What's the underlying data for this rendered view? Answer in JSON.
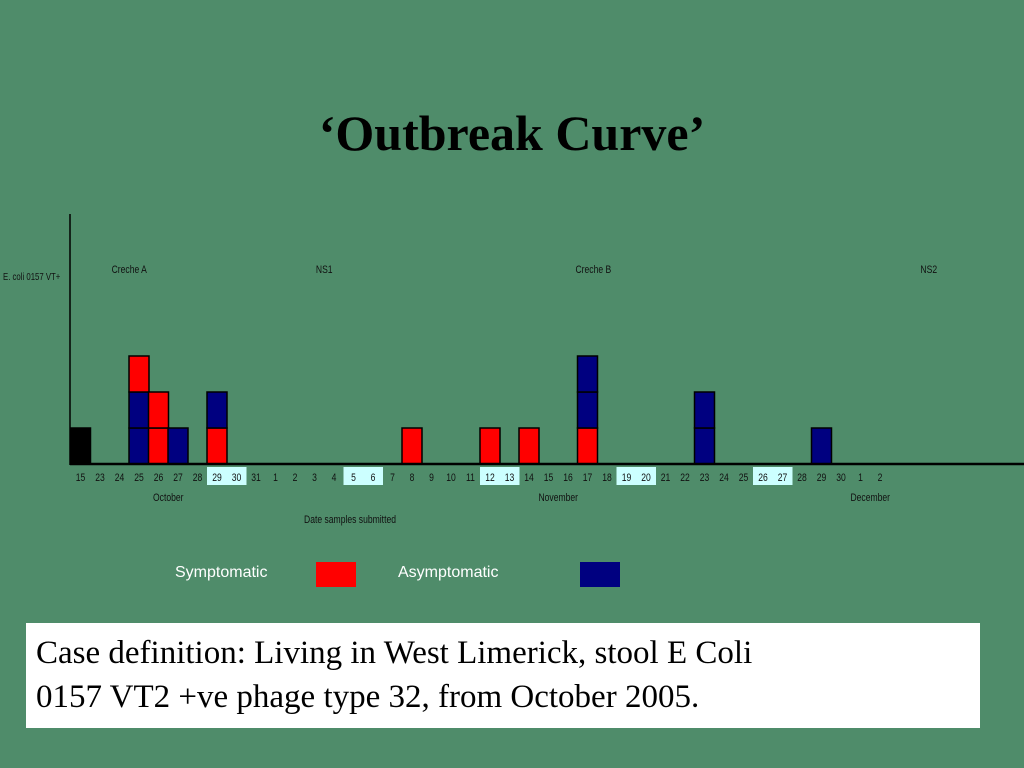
{
  "title": "‘Outbreak Curve’",
  "colors": {
    "background": "#4f8c6a",
    "symptomatic": "#ff0000",
    "asymptomatic": "#000080",
    "index_case": "#000000",
    "highlight_date": "#ccffff"
  },
  "legend": {
    "symptomatic": "Symptomatic",
    "asymptomatic": "Asymptomatic"
  },
  "case_definition": {
    "line1": "Case definition: Living in West Limerick, stool E Coli",
    "line2": "0157 VT2 +ve phage type 32, from October 2005."
  },
  "chart_data": {
    "type": "bar",
    "stacked": true,
    "ylabel": "E. coli 0157 VT+",
    "xlabel": "Date samples submitted",
    "categories": [
      "15",
      "23",
      "24",
      "25",
      "26",
      "27",
      "28",
      "29",
      "30",
      "31",
      "1",
      "2",
      "3",
      "4",
      "5",
      "6",
      "7",
      "8",
      "9",
      "10",
      "11",
      "12",
      "13",
      "14",
      "15",
      "16",
      "17",
      "18",
      "19",
      "20",
      "21",
      "22",
      "23",
      "24",
      "25",
      "26",
      "27",
      "28",
      "29",
      "30",
      "1",
      "2"
    ],
    "highlighted_categories": [
      7,
      8,
      14,
      15,
      21,
      22,
      28,
      29,
      35,
      36
    ],
    "months": [
      {
        "label": "October",
        "at": 4.5
      },
      {
        "label": "November",
        "at": 24.5
      },
      {
        "label": "December",
        "at": 40.5
      }
    ],
    "annotations": [
      {
        "label": "Creche A",
        "at": 2.5
      },
      {
        "label": "NS1",
        "at": 12.5
      },
      {
        "label": "Creche B",
        "at": 26.3
      },
      {
        "label": "NS2",
        "at": 43.5
      }
    ],
    "stacks": [
      {
        "category_index": 0,
        "cases": [
          "index"
        ]
      },
      {
        "category_index": 3,
        "cases": [
          "asymptomatic",
          "asymptomatic",
          "symptomatic"
        ]
      },
      {
        "category_index": 4,
        "cases": [
          "symptomatic",
          "symptomatic"
        ]
      },
      {
        "category_index": 5,
        "cases": [
          "asymptomatic"
        ]
      },
      {
        "category_index": 7,
        "cases": [
          "symptomatic",
          "asymptomatic"
        ]
      },
      {
        "category_index": 17,
        "cases": [
          "symptomatic"
        ]
      },
      {
        "category_index": 21,
        "cases": [
          "symptomatic"
        ]
      },
      {
        "category_index": 23,
        "cases": [
          "symptomatic"
        ]
      },
      {
        "category_index": 26,
        "cases": [
          "symptomatic",
          "asymptomatic",
          "asymptomatic"
        ]
      },
      {
        "category_index": 32,
        "cases": [
          "asymptomatic",
          "asymptomatic"
        ]
      },
      {
        "category_index": 38,
        "cases": [
          "asymptomatic"
        ]
      }
    ],
    "grid": false
  }
}
